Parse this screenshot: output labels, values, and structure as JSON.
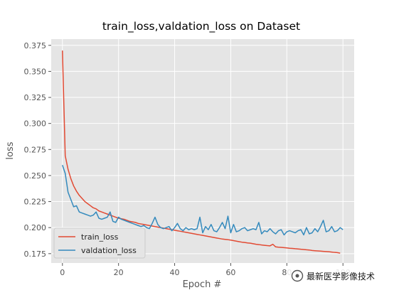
{
  "chart_data": {
    "type": "line",
    "title": "train_loss,valdation_loss on Dataset",
    "xlabel": "Epoch #",
    "ylabel": "loss",
    "xlim": [
      -4,
      104
    ],
    "ylim": [
      0.166,
      0.381
    ],
    "xticks": [
      0,
      20,
      40,
      60,
      80,
      100
    ],
    "yticks": [
      0.175,
      0.2,
      0.225,
      0.25,
      0.275,
      0.3,
      0.325,
      0.35,
      0.375
    ],
    "ytick_labels": [
      "0.175",
      "0.200",
      "0.225",
      "0.250",
      "0.275",
      "0.300",
      "0.325",
      "0.350",
      "0.375"
    ],
    "grid": true,
    "legend_position": "lower-left",
    "series": [
      {
        "name": "train_loss",
        "color": "#E24A33",
        "values": [
          0.37,
          0.269,
          0.256,
          0.247,
          0.24,
          0.235,
          0.231,
          0.228,
          0.225,
          0.223,
          0.221,
          0.219,
          0.218,
          0.216,
          0.215,
          0.214,
          0.213,
          0.212,
          0.211,
          0.21,
          0.209,
          0.2085,
          0.208,
          0.207,
          0.206,
          0.2055,
          0.205,
          0.204,
          0.2035,
          0.203,
          0.2025,
          0.202,
          0.2015,
          0.201,
          0.2005,
          0.2,
          0.1995,
          0.199,
          0.1985,
          0.198,
          0.1975,
          0.197,
          0.1965,
          0.196,
          0.1955,
          0.195,
          0.1945,
          0.194,
          0.1935,
          0.193,
          0.1925,
          0.192,
          0.1915,
          0.191,
          0.1905,
          0.19,
          0.1895,
          0.189,
          0.1887,
          0.1884,
          0.188,
          0.1875,
          0.187,
          0.1865,
          0.186,
          0.1857,
          0.1853,
          0.185,
          0.1845,
          0.184,
          0.1837,
          0.1833,
          0.183,
          0.1827,
          0.1825,
          0.184,
          0.1815,
          0.1812,
          0.181,
          0.1808,
          0.1805,
          0.1802,
          0.18,
          0.1797,
          0.1795,
          0.1792,
          0.179,
          0.1787,
          0.1785,
          0.178,
          0.1778,
          0.1776,
          0.1774,
          0.1772,
          0.177,
          0.1768,
          0.1765,
          0.1762,
          0.176,
          0.1755
        ]
      },
      {
        "name": "valdation_loss",
        "color": "#348ABD",
        "values": [
          0.26,
          0.252,
          0.234,
          0.227,
          0.22,
          0.221,
          0.215,
          0.214,
          0.213,
          0.212,
          0.211,
          0.212,
          0.215,
          0.209,
          0.208,
          0.209,
          0.21,
          0.215,
          0.206,
          0.205,
          0.21,
          0.208,
          0.207,
          0.206,
          0.205,
          0.204,
          0.203,
          0.202,
          0.201,
          0.202,
          0.2,
          0.199,
          0.204,
          0.21,
          0.203,
          0.2,
          0.199,
          0.2,
          0.201,
          0.197,
          0.2,
          0.204,
          0.199,
          0.197,
          0.2,
          0.198,
          0.199,
          0.198,
          0.199,
          0.21,
          0.195,
          0.201,
          0.198,
          0.203,
          0.197,
          0.196,
          0.2,
          0.205,
          0.199,
          0.211,
          0.195,
          0.203,
          0.196,
          0.197,
          0.199,
          0.2,
          0.197,
          0.198,
          0.199,
          0.198,
          0.205,
          0.194,
          0.197,
          0.196,
          0.199,
          0.196,
          0.194,
          0.197,
          0.198,
          0.193,
          0.196,
          0.197,
          0.196,
          0.195,
          0.197,
          0.198,
          0.193,
          0.2,
          0.194,
          0.195,
          0.199,
          0.196,
          0.201,
          0.207,
          0.196,
          0.197,
          0.201,
          0.196,
          0.197,
          0.2,
          0.198
        ]
      }
    ]
  },
  "watermark": {
    "text": "最新医学影像技术",
    "icon": "wechat-icon"
  }
}
